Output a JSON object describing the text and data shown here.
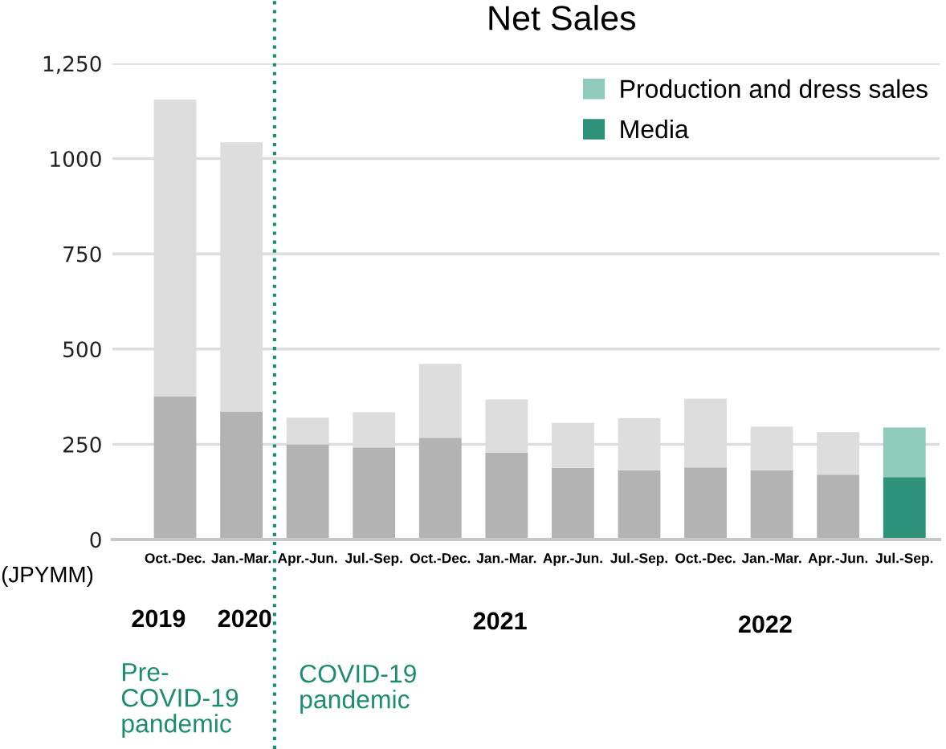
{
  "chart_data": {
    "type": "bar",
    "title": "Net Sales",
    "ylabel": "(JPYMM)",
    "categories": [
      "Oct.-Dec.",
      "Jan.-Mar.",
      "Apr.-Jun.",
      "Jul.-Sep.",
      "Oct.-Dec.",
      "Jan.-Mar.",
      "Apr.-Jun.",
      "Jul.-Sep.",
      "Oct.-Dec.",
      "Jan.-Mar.",
      "Apr.-Jun.",
      "Jul.-Sep."
    ],
    "stacked": true,
    "series": [
      {
        "name": "Media",
        "color": "#2e917a",
        "colors": [
          "#b3b3b3",
          "#b3b3b3",
          "#b3b3b3",
          "#b3b3b3",
          "#b3b3b3",
          "#b3b3b3",
          "#b3b3b3",
          "#b3b3b3",
          "#b3b3b3",
          "#b3b3b3",
          "#b3b3b3",
          "#2e917a"
        ],
        "values": [
          375,
          335,
          250,
          242,
          267,
          228,
          188,
          182,
          189,
          182,
          170,
          164
        ]
      },
      {
        "name": "Production and dress sales",
        "color": "#8ecbba",
        "colors": [
          "#dddddd",
          "#dddddd",
          "#dddddd",
          "#dddddd",
          "#dddddd",
          "#dddddd",
          "#dddddd",
          "#dddddd",
          "#dddddd",
          "#dddddd",
          "#dddddd",
          "#8ecbba"
        ],
        "values": [
          780,
          708,
          70,
          92,
          194,
          140,
          118,
          137,
          181,
          114,
          112,
          130
        ]
      }
    ],
    "ylim": [
      0,
      1250
    ],
    "yticks": [
      0,
      250,
      500,
      750,
      1000,
      {
        "value": 1250,
        "label": "1,250"
      }
    ],
    "grid": "y",
    "legend": "top right",
    "ref_lines": [
      {
        "axis": "x",
        "value": "Apr.-Jun.",
        "color": "#1e8c70",
        "line_style": "dotted"
      }
    ],
    "annotations": [
      "2019",
      "2020",
      "2021",
      "2022",
      "Pre-\nCOVID-19\npandemic",
      "COVID-19\npandemic"
    ]
  }
}
